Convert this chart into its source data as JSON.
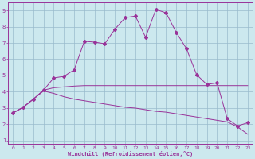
{
  "xlabel": "Windchill (Refroidissement éolien,°C)",
  "bg_color": "#cce8ee",
  "line_color": "#993399",
  "grid_color": "#99bbcc",
  "xlim": [
    -0.5,
    23.5
  ],
  "ylim": [
    0.8,
    9.5
  ],
  "xticks": [
    0,
    1,
    2,
    3,
    4,
    5,
    6,
    7,
    8,
    9,
    10,
    11,
    12,
    13,
    14,
    15,
    16,
    17,
    18,
    19,
    20,
    21,
    22,
    23
  ],
  "yticks": [
    1,
    2,
    3,
    4,
    5,
    6,
    7,
    8,
    9
  ],
  "main_x": [
    0,
    1,
    2,
    3,
    4,
    5,
    6,
    7,
    8,
    9,
    10,
    11,
    12,
    13,
    14,
    15,
    16,
    17,
    18,
    19,
    20,
    21,
    22,
    23
  ],
  "main_y": [
    2.7,
    3.05,
    3.55,
    4.1,
    4.85,
    4.95,
    5.35,
    7.1,
    7.05,
    6.95,
    7.85,
    8.55,
    8.65,
    7.35,
    9.05,
    8.85,
    7.65,
    6.65,
    5.05,
    4.45,
    4.55,
    2.35,
    1.9,
    2.1
  ],
  "line2_x": [
    0,
    1,
    2,
    3,
    4,
    5,
    6,
    7,
    8,
    9,
    10,
    11,
    12,
    13,
    14,
    15,
    16,
    17,
    18,
    19,
    20,
    21,
    22,
    23
  ],
  "line2_y": [
    2.7,
    3.05,
    3.55,
    4.05,
    3.9,
    3.7,
    3.55,
    3.45,
    3.35,
    3.25,
    3.15,
    3.05,
    3.0,
    2.9,
    2.8,
    2.75,
    2.65,
    2.55,
    2.45,
    2.35,
    2.25,
    2.15,
    1.85,
    1.4
  ],
  "line3_x": [
    0,
    1,
    2,
    3,
    4,
    5,
    6,
    7,
    8,
    9,
    10,
    11,
    12,
    13,
    14,
    15,
    16,
    17,
    18,
    19,
    20,
    21,
    22,
    23
  ],
  "line3_y": [
    2.7,
    3.05,
    3.55,
    4.1,
    4.25,
    4.3,
    4.35,
    4.38,
    4.38,
    4.38,
    4.38,
    4.38,
    4.38,
    4.38,
    4.38,
    4.38,
    4.38,
    4.38,
    4.38,
    4.38,
    4.38,
    4.38,
    4.38,
    4.38
  ]
}
